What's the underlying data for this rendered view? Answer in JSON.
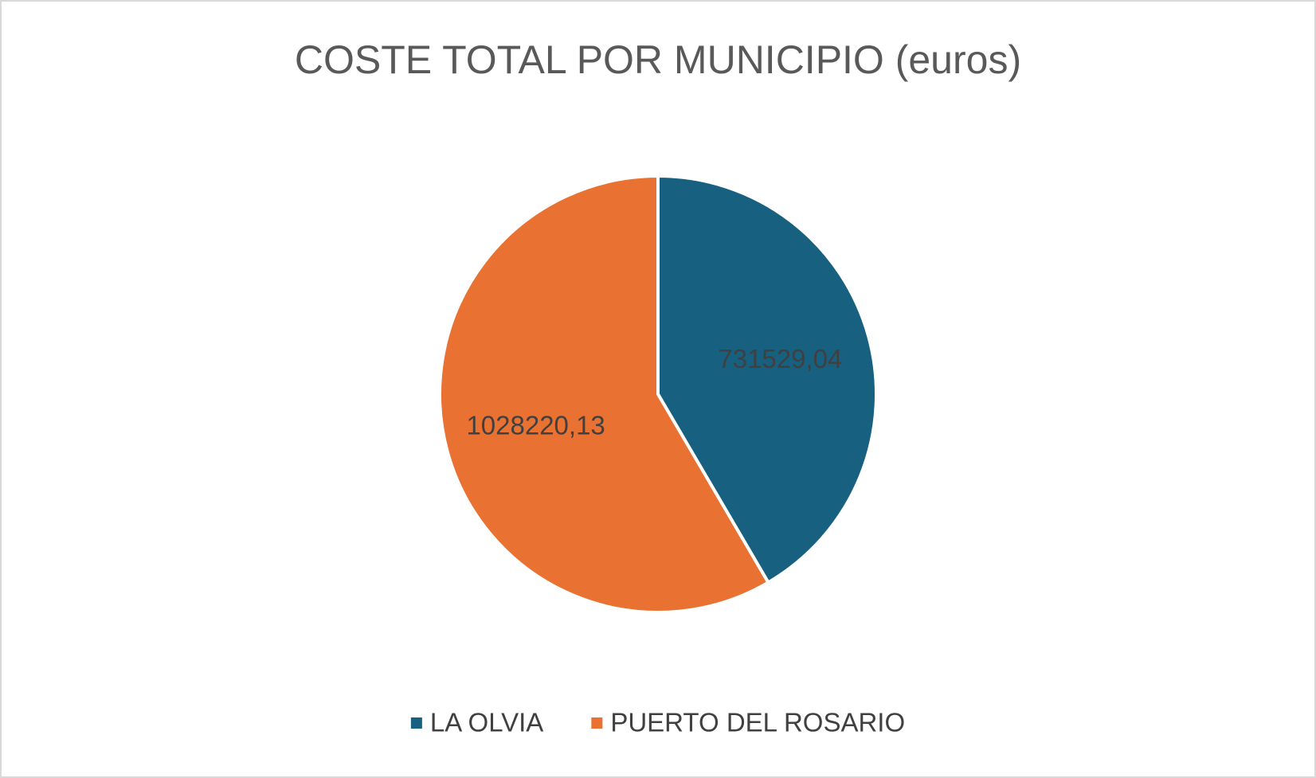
{
  "chart_data": {
    "type": "pie",
    "title": "COSTE TOTAL POR MUNICIPIO (euros)",
    "categories": [
      "LA OLVIA",
      "PUERTO DEL ROSARIO"
    ],
    "values": [
      731529.04,
      1028220.13
    ],
    "value_labels": [
      "731529,04",
      "1028220,13"
    ],
    "colors": [
      "#17607f",
      "#e97132"
    ],
    "legend": "bottom"
  }
}
